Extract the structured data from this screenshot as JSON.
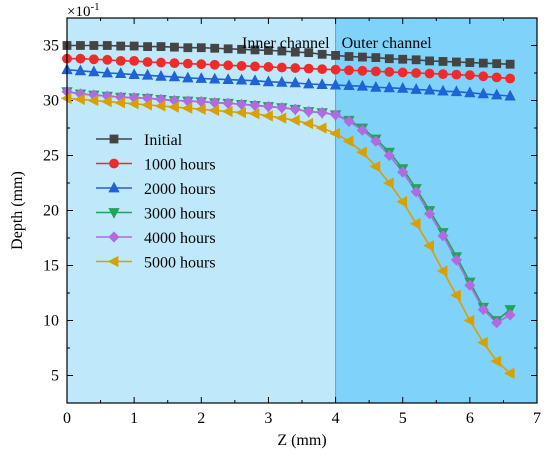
{
  "chart_data": {
    "type": "line",
    "xlabel": "Z (mm)",
    "ylabel": "Depth (mm)",
    "y_multiplier": "×10",
    "y_multiplier_exp": "-1",
    "xlim": [
      0,
      7
    ],
    "ylim": [
      2.5,
      37.5
    ],
    "xticks": [
      "0",
      "1",
      "2",
      "3",
      "4",
      "5",
      "6",
      "7"
    ],
    "yticks": [
      "5",
      "10",
      "15",
      "20",
      "25",
      "30",
      "35"
    ],
    "xtick_values": [
      0,
      1,
      2,
      3,
      4,
      5,
      6,
      7
    ],
    "ytick_values": [
      5,
      10,
      15,
      20,
      25,
      30,
      35
    ],
    "regions": [
      {
        "label": "Inner channel",
        "x_from": 0,
        "x_to": 4,
        "color": "#bfe9fb"
      },
      {
        "label": "Outer channel",
        "x_from": 4,
        "x_to": 7,
        "color": "#7fd3fb"
      }
    ],
    "legend_position": "left-middle",
    "x": [
      0,
      0.2,
      0.4,
      0.6,
      0.8,
      1.0,
      1.2,
      1.4,
      1.6,
      1.8,
      2.0,
      2.2,
      2.4,
      2.6,
      2.8,
      3.0,
      3.2,
      3.4,
      3.6,
      3.8,
      4.0,
      4.2,
      4.4,
      4.6,
      4.8,
      5.0,
      5.2,
      5.4,
      5.6,
      5.8,
      6.0,
      6.2,
      6.4,
      6.6
    ],
    "series": [
      {
        "name": "Initial",
        "marker": "square",
        "color": "#444444",
        "values": [
          35.0,
          35.0,
          35.0,
          35.0,
          34.95,
          34.95,
          34.9,
          34.9,
          34.85,
          34.8,
          34.8,
          34.75,
          34.7,
          34.65,
          34.6,
          34.55,
          34.5,
          34.4,
          34.35,
          34.2,
          34.1,
          34.0,
          33.95,
          33.9,
          33.8,
          33.75,
          33.7,
          33.6,
          33.55,
          33.5,
          33.45,
          33.4,
          33.35,
          33.3
        ]
      },
      {
        "name": "1000 hours",
        "marker": "circle",
        "color": "#ee2a2a",
        "values": [
          33.8,
          33.8,
          33.75,
          33.7,
          33.6,
          33.6,
          33.5,
          33.45,
          33.4,
          33.35,
          33.3,
          33.25,
          33.2,
          33.15,
          33.1,
          33.05,
          33.0,
          32.95,
          32.9,
          32.85,
          32.8,
          32.75,
          32.7,
          32.65,
          32.6,
          32.55,
          32.5,
          32.45,
          32.4,
          32.35,
          32.3,
          32.2,
          32.1,
          32.0
        ]
      },
      {
        "name": "2000 hours",
        "marker": "triangle-up",
        "color": "#1f63d6",
        "values": [
          32.8,
          32.7,
          32.6,
          32.5,
          32.45,
          32.35,
          32.3,
          32.2,
          32.15,
          32.05,
          32.0,
          31.95,
          31.9,
          31.85,
          31.8,
          31.7,
          31.65,
          31.6,
          31.5,
          31.45,
          31.4,
          31.35,
          31.3,
          31.2,
          31.15,
          31.1,
          31.0,
          30.95,
          30.85,
          30.8,
          30.7,
          30.6,
          30.5,
          30.4
        ]
      },
      {
        "name": "3000 hours",
        "marker": "triangle-down",
        "color": "#22a35a",
        "values": [
          30.8,
          30.6,
          30.5,
          30.4,
          30.3,
          30.25,
          30.2,
          30.1,
          30.0,
          29.95,
          29.9,
          29.8,
          29.75,
          29.65,
          29.55,
          29.45,
          29.35,
          29.2,
          29.0,
          28.9,
          28.7,
          28.2,
          27.5,
          26.5,
          25.3,
          23.8,
          22.0,
          20.0,
          18.0,
          15.8,
          13.5,
          11.2,
          10.0,
          11.0
        ]
      },
      {
        "name": "4000 hours",
        "marker": "diamond",
        "color": "#b26ae0",
        "values": [
          30.8,
          30.6,
          30.5,
          30.4,
          30.3,
          30.25,
          30.2,
          30.1,
          30.0,
          29.95,
          29.9,
          29.8,
          29.75,
          29.65,
          29.55,
          29.45,
          29.35,
          29.2,
          29.0,
          28.9,
          28.7,
          28.1,
          27.3,
          26.3,
          25.0,
          23.5,
          21.7,
          19.7,
          17.7,
          15.5,
          13.2,
          11.0,
          9.8,
          10.5
        ]
      },
      {
        "name": "5000 hours",
        "marker": "triangle-left",
        "color": "#d9a000",
        "values": [
          30.2,
          30.1,
          30.0,
          29.9,
          29.8,
          29.7,
          29.6,
          29.5,
          29.4,
          29.3,
          29.2,
          29.1,
          29.0,
          28.9,
          28.8,
          28.6,
          28.4,
          28.2,
          27.9,
          27.5,
          27.0,
          26.3,
          25.3,
          24.0,
          22.5,
          20.8,
          18.8,
          16.8,
          14.5,
          12.3,
          10.0,
          8.0,
          6.3,
          5.2
        ]
      }
    ]
  }
}
